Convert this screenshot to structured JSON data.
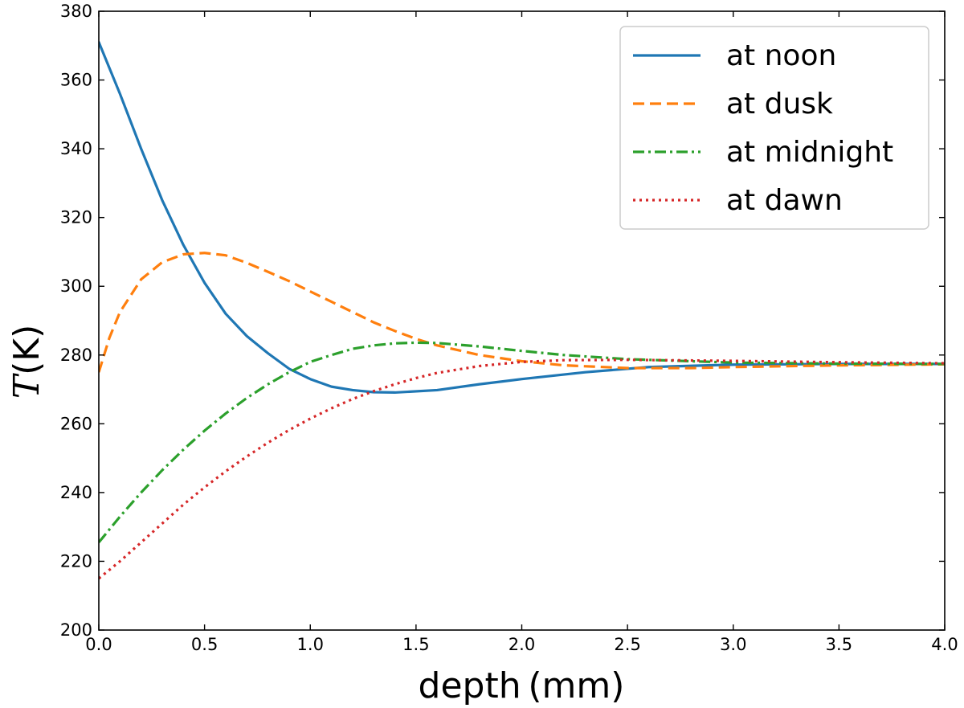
{
  "chart_data": {
    "type": "line",
    "title": "",
    "xlabel": "depth (mm)",
    "ylabel_var": "T",
    "ylabel_unit": "(K)",
    "xlim": [
      0.0,
      4.0
    ],
    "ylim": [
      200,
      380
    ],
    "xticks": [
      "0.0",
      "0.5",
      "1.0",
      "1.5",
      "2.0",
      "2.5",
      "3.0",
      "3.5",
      "4.0"
    ],
    "yticks": [
      "200",
      "220",
      "240",
      "260",
      "280",
      "300",
      "320",
      "340",
      "360",
      "380"
    ],
    "legend_position": "top-right",
    "series": [
      {
        "name": "at noon",
        "color": "#1f77b4",
        "dash": "solid",
        "x": [
          0.0,
          0.1,
          0.2,
          0.3,
          0.4,
          0.5,
          0.6,
          0.7,
          0.8,
          0.9,
          1.0,
          1.1,
          1.2,
          1.3,
          1.4,
          1.6,
          1.8,
          2.0,
          2.3,
          2.6,
          3.0,
          3.5,
          4.0
        ],
        "values": [
          371,
          356,
          340,
          325,
          312,
          301,
          292,
          285.5,
          280.5,
          276,
          273,
          270.8,
          269.8,
          269.2,
          269.1,
          269.8,
          271.5,
          273,
          275,
          276.5,
          277.2,
          277.4,
          277.4
        ]
      },
      {
        "name": "at dusk",
        "color": "#ff7f0e",
        "dash": "dashed",
        "x": [
          0.0,
          0.05,
          0.1,
          0.2,
          0.3,
          0.4,
          0.5,
          0.6,
          0.7,
          0.8,
          0.9,
          1.0,
          1.1,
          1.2,
          1.3,
          1.4,
          1.5,
          1.6,
          1.8,
          2.0,
          2.2,
          2.5,
          2.8,
          3.0,
          3.5,
          4.0
        ],
        "values": [
          275,
          285,
          292.5,
          302,
          307,
          309.3,
          309.7,
          309,
          306.8,
          304.2,
          301.5,
          298.5,
          295.5,
          292.5,
          289.5,
          287,
          284.7,
          282.8,
          280,
          278.2,
          277,
          276.2,
          276.2,
          276.5,
          277,
          277.3
        ]
      },
      {
        "name": "at midnight",
        "color": "#2ca02c",
        "dash": "dashdot",
        "x": [
          0.0,
          0.1,
          0.2,
          0.3,
          0.4,
          0.5,
          0.6,
          0.7,
          0.8,
          0.9,
          1.0,
          1.1,
          1.2,
          1.3,
          1.4,
          1.5,
          1.6,
          1.8,
          2.0,
          2.2,
          2.5,
          3.0,
          3.5,
          4.0
        ],
        "values": [
          225.5,
          233,
          240,
          246.5,
          252.5,
          258,
          263,
          267.5,
          271.5,
          275,
          278,
          280,
          281.8,
          282.8,
          283.4,
          283.6,
          283.5,
          282.5,
          281.2,
          280,
          278.8,
          277.8,
          277.5,
          277.4
        ]
      },
      {
        "name": "at dawn",
        "color": "#d62728",
        "dash": "dotted",
        "x": [
          0.0,
          0.1,
          0.2,
          0.3,
          0.4,
          0.5,
          0.6,
          0.7,
          0.8,
          0.9,
          1.0,
          1.1,
          1.2,
          1.3,
          1.4,
          1.5,
          1.6,
          1.8,
          2.0,
          2.2,
          2.5,
          3.0,
          3.5,
          4.0
        ],
        "values": [
          215,
          220,
          225.5,
          231,
          236.5,
          241.5,
          246.2,
          250.5,
          254.5,
          258.2,
          261.5,
          264.5,
          267.2,
          269.5,
          271.5,
          273.3,
          274.8,
          276.8,
          278,
          278.5,
          278.6,
          278.3,
          277.9,
          277.6
        ]
      }
    ]
  }
}
